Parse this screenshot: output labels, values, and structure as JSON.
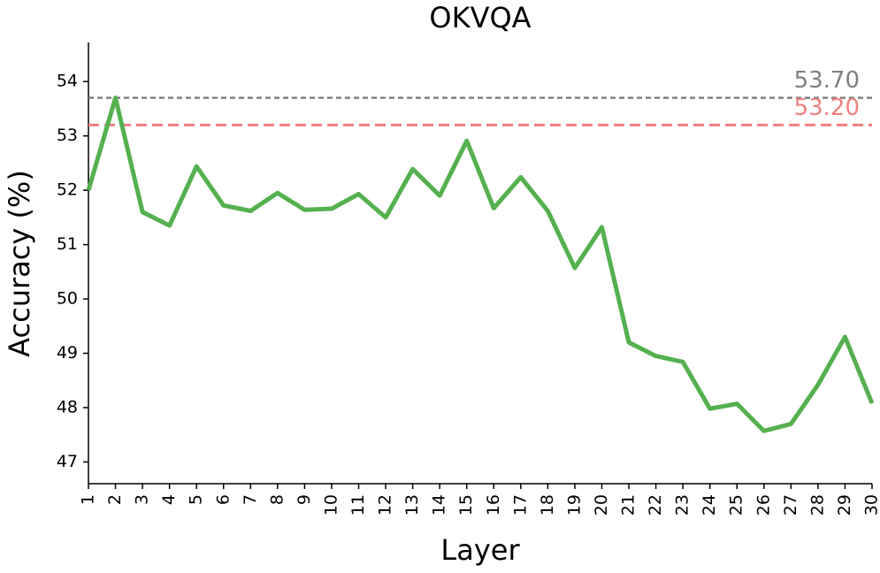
{
  "chart_data": {
    "type": "line",
    "title": "OKVQA",
    "x_label": "Layer",
    "y_label": "Accuracy (%)",
    "x": [
      1,
      2,
      3,
      4,
      5,
      6,
      7,
      8,
      9,
      10,
      11,
      12,
      13,
      14,
      15,
      16,
      17,
      18,
      19,
      20,
      21,
      22,
      23,
      24,
      25,
      26,
      27,
      28,
      29,
      30
    ],
    "series": [
      {
        "color": "#55b04f",
        "values": [
          52.0,
          53.7,
          51.6,
          51.35,
          52.44,
          51.72,
          51.62,
          51.95,
          51.64,
          51.66,
          51.93,
          51.5,
          52.39,
          51.9,
          52.91,
          51.67,
          52.24,
          51.62,
          50.57,
          51.32,
          49.2,
          48.95,
          48.84,
          47.98,
          48.07,
          47.57,
          47.7,
          48.42,
          49.3,
          48.08
        ]
      }
    ],
    "xlim": [
      1,
      30
    ],
    "xticks": [
      1,
      2,
      3,
      4,
      5,
      6,
      7,
      8,
      9,
      10,
      11,
      12,
      13,
      14,
      15,
      16,
      17,
      18,
      19,
      20,
      21,
      22,
      23,
      24,
      25,
      26,
      27,
      28,
      29,
      30
    ],
    "ylim": [
      46.6,
      54.72
    ],
    "yticks": [
      47,
      48,
      49,
      50,
      51,
      52,
      53,
      54
    ],
    "reference_lines": [
      {
        "value": 53.7,
        "label": "53.70",
        "color": "#808080",
        "dash": "6,4",
        "width": 2.5
      },
      {
        "value": 53.2,
        "label": "53.20",
        "color": "#f08080",
        "dash": "12,6",
        "width": 3
      }
    ]
  }
}
